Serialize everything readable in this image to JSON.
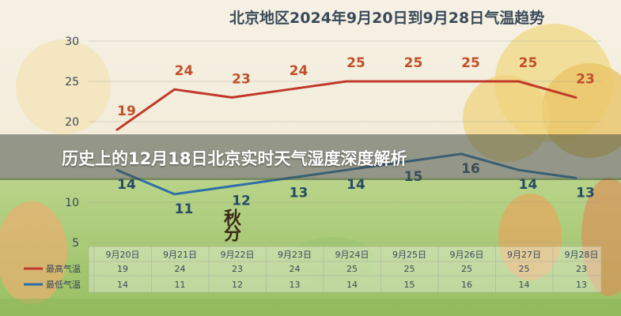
{
  "page": {
    "chart_title": "北京地区2024年9月20日到9月28日气温趋势",
    "overlay_title": "历史上的12月18日北京实时天气湿度深度解析",
    "stamp_text": "秋分"
  },
  "colors": {
    "high": "#c0392b",
    "low": "#2e6fa8",
    "high_label": "#c0502a",
    "low_label": "#2a4a66"
  },
  "chart_data": {
    "type": "line",
    "title": "北京地区2024年9月20日到9月28日气温趋势",
    "categories": [
      "9月20日",
      "9月21日",
      "9月22日",
      "9月23日",
      "9月24日",
      "9月25日",
      "9月26日",
      "9月27日",
      "9月28日"
    ],
    "series": [
      {
        "name": "最高气温",
        "values": [
          19,
          24,
          23,
          24,
          25,
          25,
          25,
          25,
          23
        ]
      },
      {
        "name": "最低气温",
        "values": [
          14,
          11,
          12,
          13,
          14,
          15,
          16,
          14,
          13
        ]
      }
    ],
    "yticks": [
      5,
      10,
      20,
      25,
      30
    ],
    "ylim": [
      5,
      30
    ],
    "legend": "bottom-table"
  }
}
